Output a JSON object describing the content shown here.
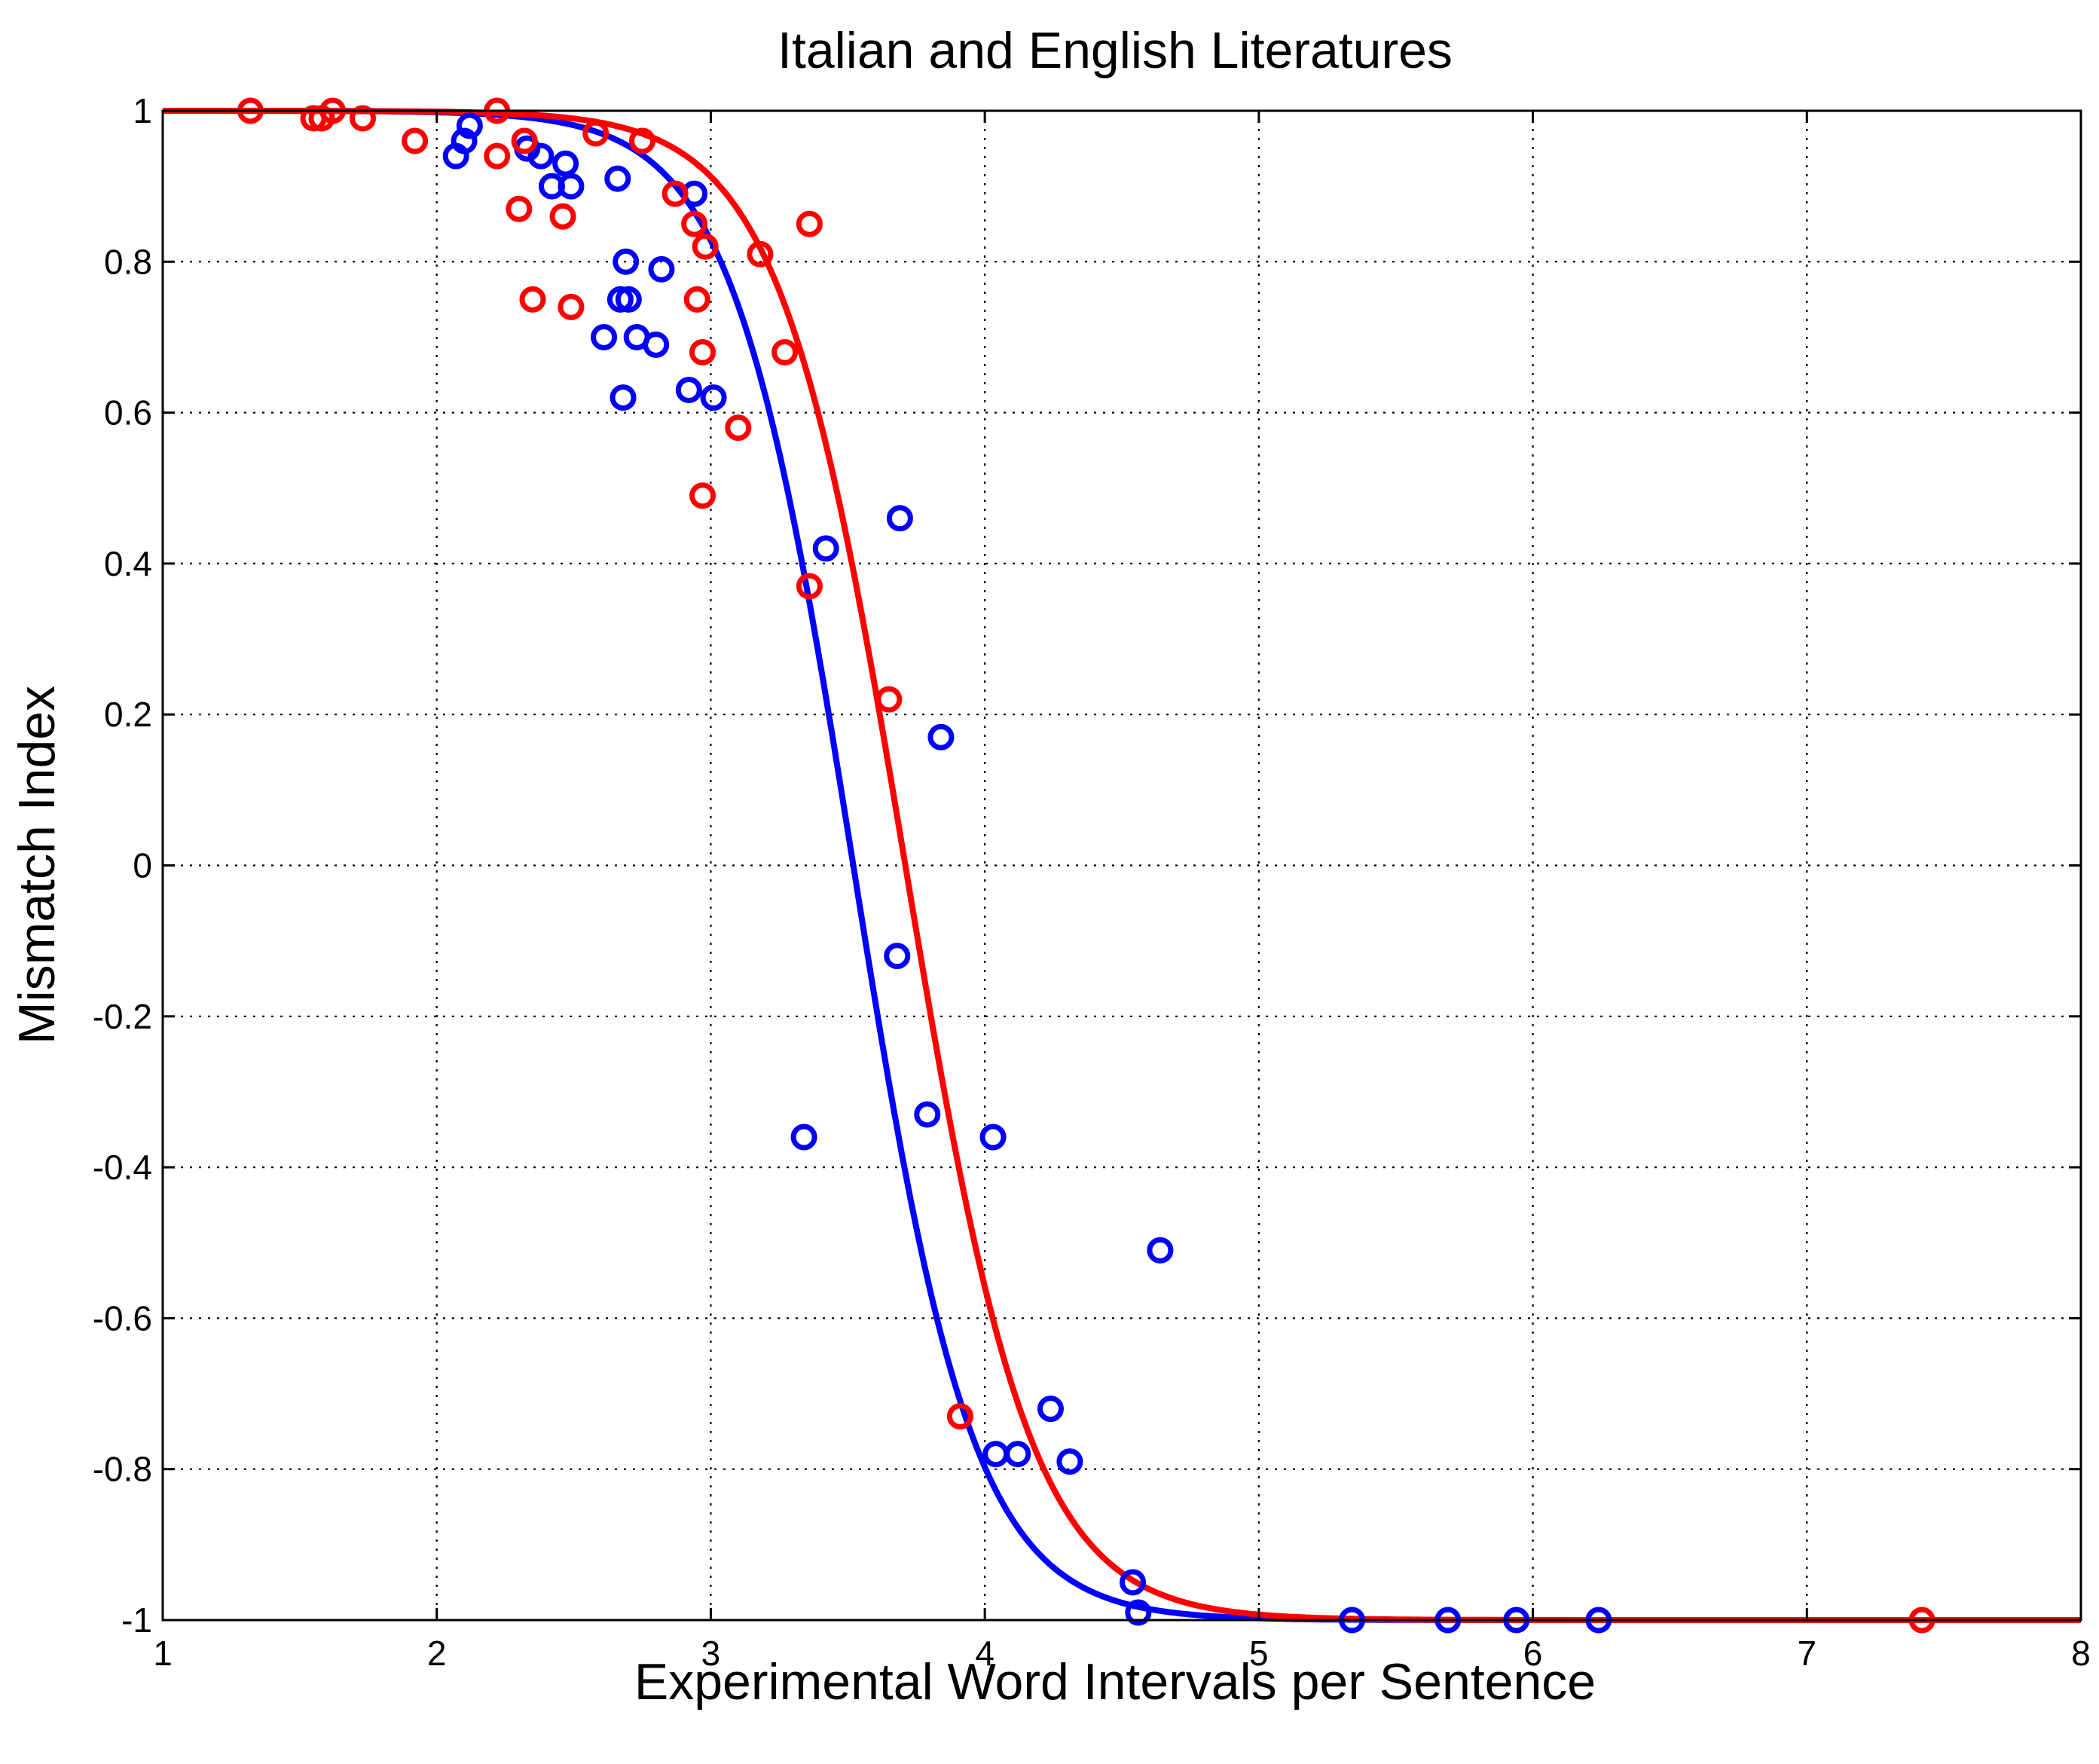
{
  "chart_data": {
    "type": "scatter",
    "title": "Italian and English Literatures",
    "xlabel": "Experimental Word Intervals per Sentence",
    "ylabel": "Mismatch Index",
    "xlim": [
      1,
      8
    ],
    "ylim": [
      -1,
      1
    ],
    "xticks": [
      1,
      2,
      3,
      4,
      5,
      6,
      7,
      8
    ],
    "yticks": [
      1,
      0.8,
      0.6,
      0.4,
      0.2,
      0,
      -0.2,
      -0.4,
      -0.6,
      -0.8,
      -1
    ],
    "ytick_labels": [
      "1",
      "0.8",
      "0.6",
      "0.4",
      "0.2",
      "0",
      "-0.2",
      "-0.4",
      "-0.6",
      "-0.8",
      "-1"
    ],
    "grid": true,
    "series": [
      {
        "color": "#0000ff",
        "marker": "circle",
        "fit_center": 3.52,
        "fit_width": 0.44,
        "points": [
          [
            2.07,
            0.94
          ],
          [
            2.1,
            0.96
          ],
          [
            2.12,
            0.98
          ],
          [
            2.33,
            0.95
          ],
          [
            2.38,
            0.94
          ],
          [
            2.42,
            0.9
          ],
          [
            2.47,
            0.93
          ],
          [
            2.49,
            0.9
          ],
          [
            2.66,
            0.91
          ],
          [
            2.69,
            0.8
          ],
          [
            2.67,
            0.75
          ],
          [
            2.7,
            0.75
          ],
          [
            2.61,
            0.7
          ],
          [
            2.73,
            0.7
          ],
          [
            2.8,
            0.69
          ],
          [
            2.82,
            0.79
          ],
          [
            2.68,
            0.62
          ],
          [
            2.92,
            0.63
          ],
          [
            2.94,
            0.89
          ],
          [
            3.01,
            0.62
          ],
          [
            3.42,
            0.42
          ],
          [
            3.69,
            0.46
          ],
          [
            3.84,
            0.17
          ],
          [
            3.68,
            -0.12
          ],
          [
            3.79,
            -0.33
          ],
          [
            3.34,
            -0.36
          ],
          [
            4.03,
            -0.36
          ],
          [
            4.64,
            -0.51
          ],
          [
            4.24,
            -0.72
          ],
          [
            4.04,
            -0.78
          ],
          [
            4.12,
            -0.78
          ],
          [
            4.31,
            -0.79
          ],
          [
            4.54,
            -0.95
          ],
          [
            4.56,
            -0.99
          ],
          [
            5.34,
            -1.0
          ],
          [
            5.69,
            -1.0
          ],
          [
            5.94,
            -1.0
          ],
          [
            6.24,
            -1.0
          ]
        ]
      },
      {
        "color": "#ff0000",
        "marker": "circle",
        "fit_center": 3.71,
        "fit_width": 0.46,
        "points": [
          [
            1.32,
            1.0
          ],
          [
            1.55,
            0.99
          ],
          [
            1.58,
            0.99
          ],
          [
            1.62,
            1.0
          ],
          [
            1.73,
            0.99
          ],
          [
            1.92,
            0.96
          ],
          [
            2.22,
            1.0
          ],
          [
            2.22,
            0.94
          ],
          [
            2.32,
            0.96
          ],
          [
            2.3,
            0.87
          ],
          [
            2.46,
            0.86
          ],
          [
            2.35,
            0.75
          ],
          [
            2.49,
            0.74
          ],
          [
            2.58,
            0.97
          ],
          [
            2.75,
            0.96
          ],
          [
            2.87,
            0.89
          ],
          [
            2.94,
            0.85
          ],
          [
            2.98,
            0.82
          ],
          [
            2.95,
            0.75
          ],
          [
            2.97,
            0.68
          ],
          [
            3.18,
            0.81
          ],
          [
            3.36,
            0.85
          ],
          [
            3.27,
            0.68
          ],
          [
            3.1,
            0.58
          ],
          [
            2.97,
            0.49
          ],
          [
            3.36,
            0.37
          ],
          [
            3.65,
            0.22
          ],
          [
            3.91,
            -0.73
          ],
          [
            7.42,
            -1.0
          ]
        ]
      }
    ]
  }
}
